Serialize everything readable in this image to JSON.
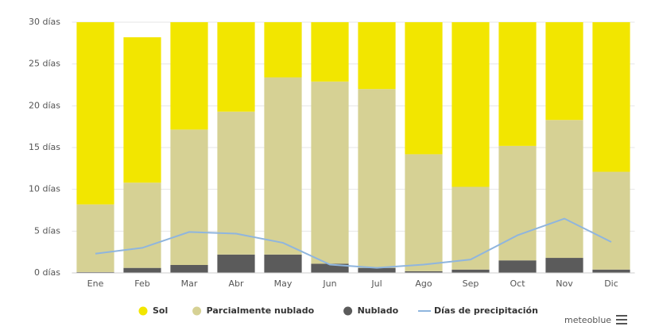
{
  "chart_data": {
    "type": "bar",
    "categories": [
      "Ene",
      "Feb",
      "Mar",
      "Abr",
      "May",
      "Jun",
      "Jul",
      "Ago",
      "Sep",
      "Oct",
      "Nov",
      "Dic"
    ],
    "series": [
      {
        "name": "Sol",
        "color": "#f2e600",
        "values": [
          22.8,
          17.4,
          13.8,
          10.7,
          7.6,
          7.1,
          9.0,
          16.8,
          19.7,
          15.8,
          11.7,
          18.9
        ]
      },
      {
        "name": "Parcialmente nublado",
        "color": "#d6d194",
        "values": [
          8.1,
          10.2,
          16.2,
          17.1,
          21.2,
          21.8,
          21.4,
          14.0,
          9.9,
          13.7,
          16.5,
          11.7
        ]
      },
      {
        "name": "Nublado",
        "color": "#5b5b5b",
        "values": [
          0.1,
          0.6,
          0.95,
          2.2,
          2.2,
          1.1,
          0.6,
          0.2,
          0.4,
          1.5,
          1.8,
          0.4
        ]
      },
      {
        "name": "Días de precipitación",
        "type": "line",
        "color": "#8fb5de",
        "values": [
          2.3,
          3.0,
          4.9,
          4.7,
          3.6,
          1.0,
          0.6,
          1.0,
          1.6,
          4.5,
          6.5,
          3.7
        ]
      }
    ],
    "ylim": [
      0,
      30
    ],
    "yticks": [
      {
        "value": 0,
        "label": "0 días"
      },
      {
        "value": 5,
        "label": "5 días"
      },
      {
        "value": 10,
        "label": "10 días"
      },
      {
        "value": 15,
        "label": "15 días"
      },
      {
        "value": 20,
        "label": "20 días"
      },
      {
        "value": 25,
        "label": "25 días"
      },
      {
        "value": 30,
        "label": "30 días"
      }
    ],
    "grid": true,
    "legend": "bottom",
    "credit": "meteoblue"
  }
}
